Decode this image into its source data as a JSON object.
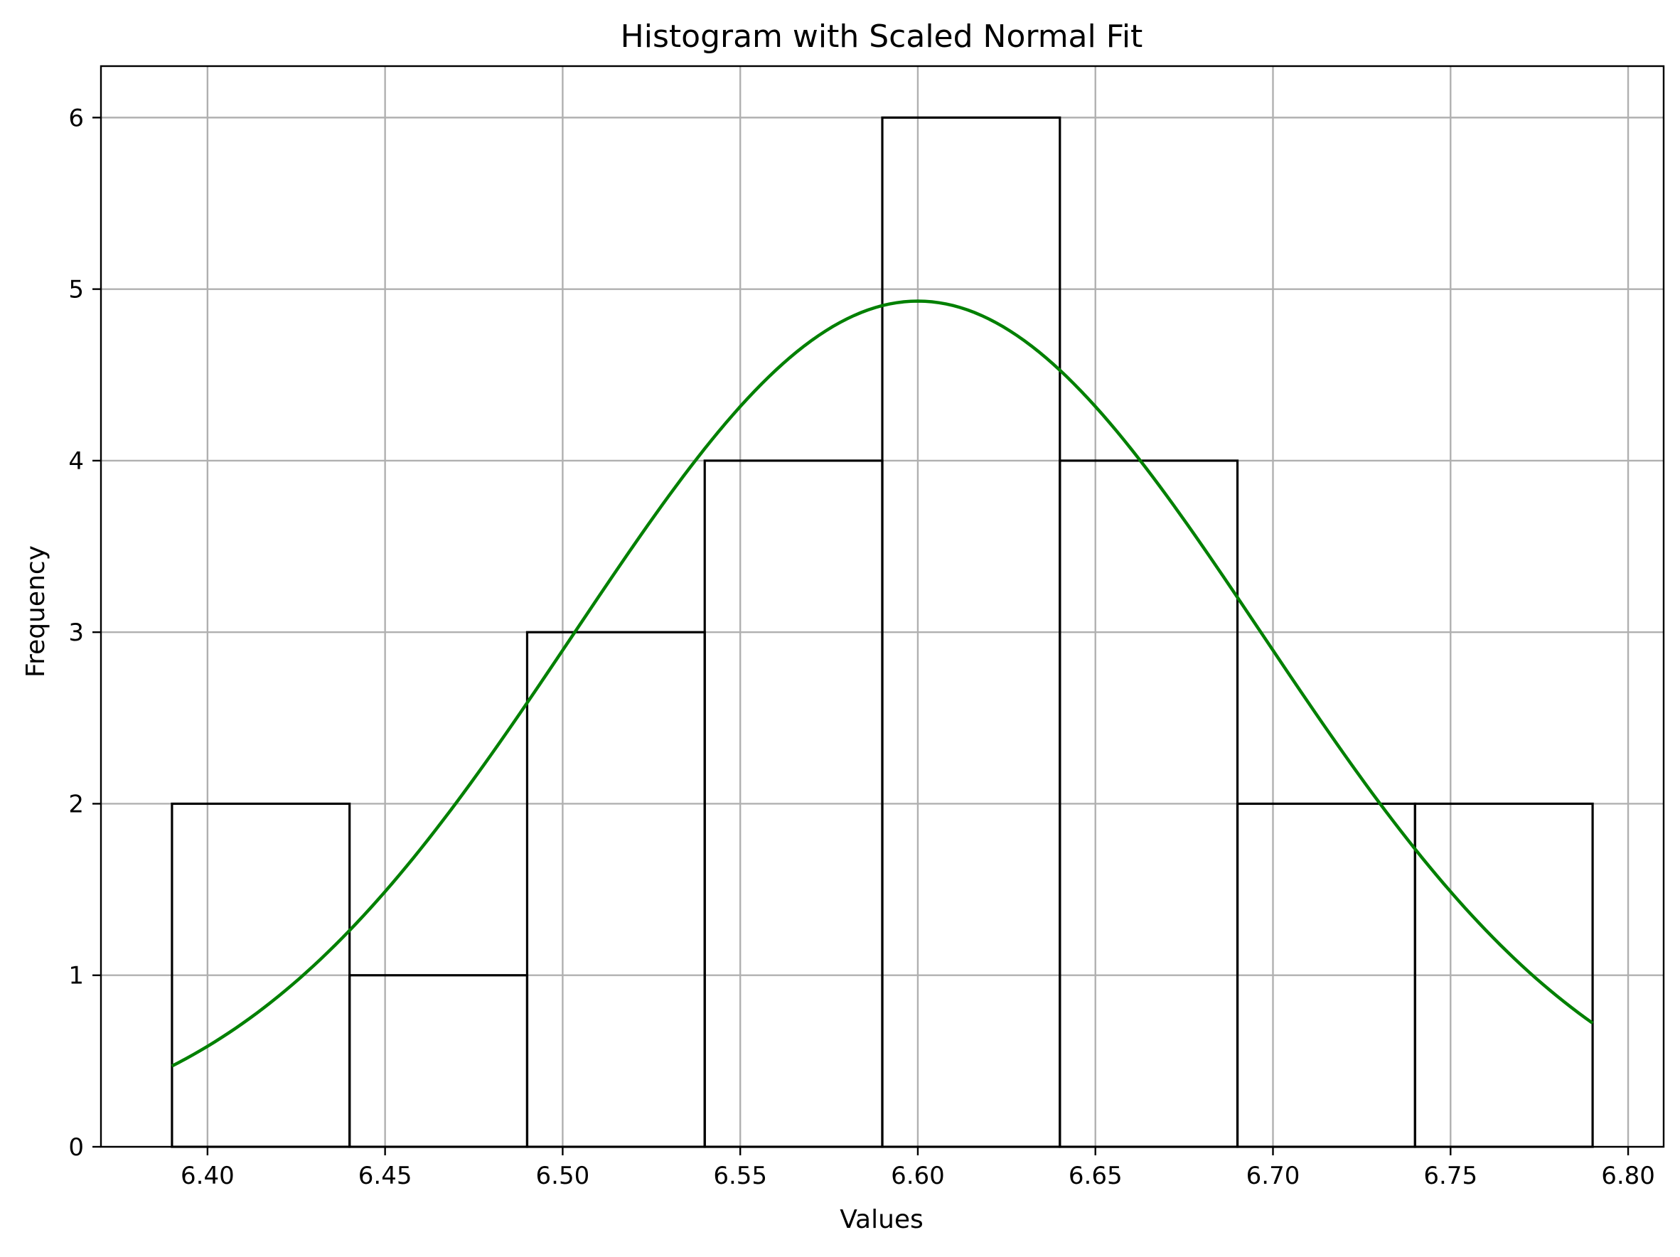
{
  "chart_data": {
    "type": "bar",
    "subtype": "histogram_with_fit",
    "title": "Histogram with Scaled Normal Fit",
    "xlabel": "Values",
    "ylabel": "Frequency",
    "xlim": [
      6.37,
      6.81
    ],
    "ylim": [
      0,
      6.3
    ],
    "grid": true,
    "xticks": [
      6.4,
      6.45,
      6.5,
      6.55,
      6.6,
      6.65,
      6.7,
      6.75,
      6.8
    ],
    "xtick_labels": [
      "6.40",
      "6.45",
      "6.50",
      "6.55",
      "6.60",
      "6.65",
      "6.70",
      "6.75",
      "6.80"
    ],
    "yticks": [
      0,
      1,
      2,
      3,
      4,
      5,
      6
    ],
    "ytick_labels": [
      "0",
      "1",
      "2",
      "3",
      "4",
      "5",
      "6"
    ],
    "bin_edges": [
      6.39,
      6.44,
      6.49,
      6.54,
      6.59,
      6.64,
      6.69,
      6.74,
      6.79
    ],
    "counts": [
      2,
      1,
      3,
      4,
      6,
      4,
      2,
      2
    ],
    "bar_edge_color": "#000000",
    "bar_face_color": "none",
    "fit": {
      "distribution": "normal",
      "mean": 6.6,
      "sd": 0.0969,
      "peak": 4.93,
      "x_range": [
        6.39,
        6.79
      ],
      "color": "#008000"
    }
  }
}
